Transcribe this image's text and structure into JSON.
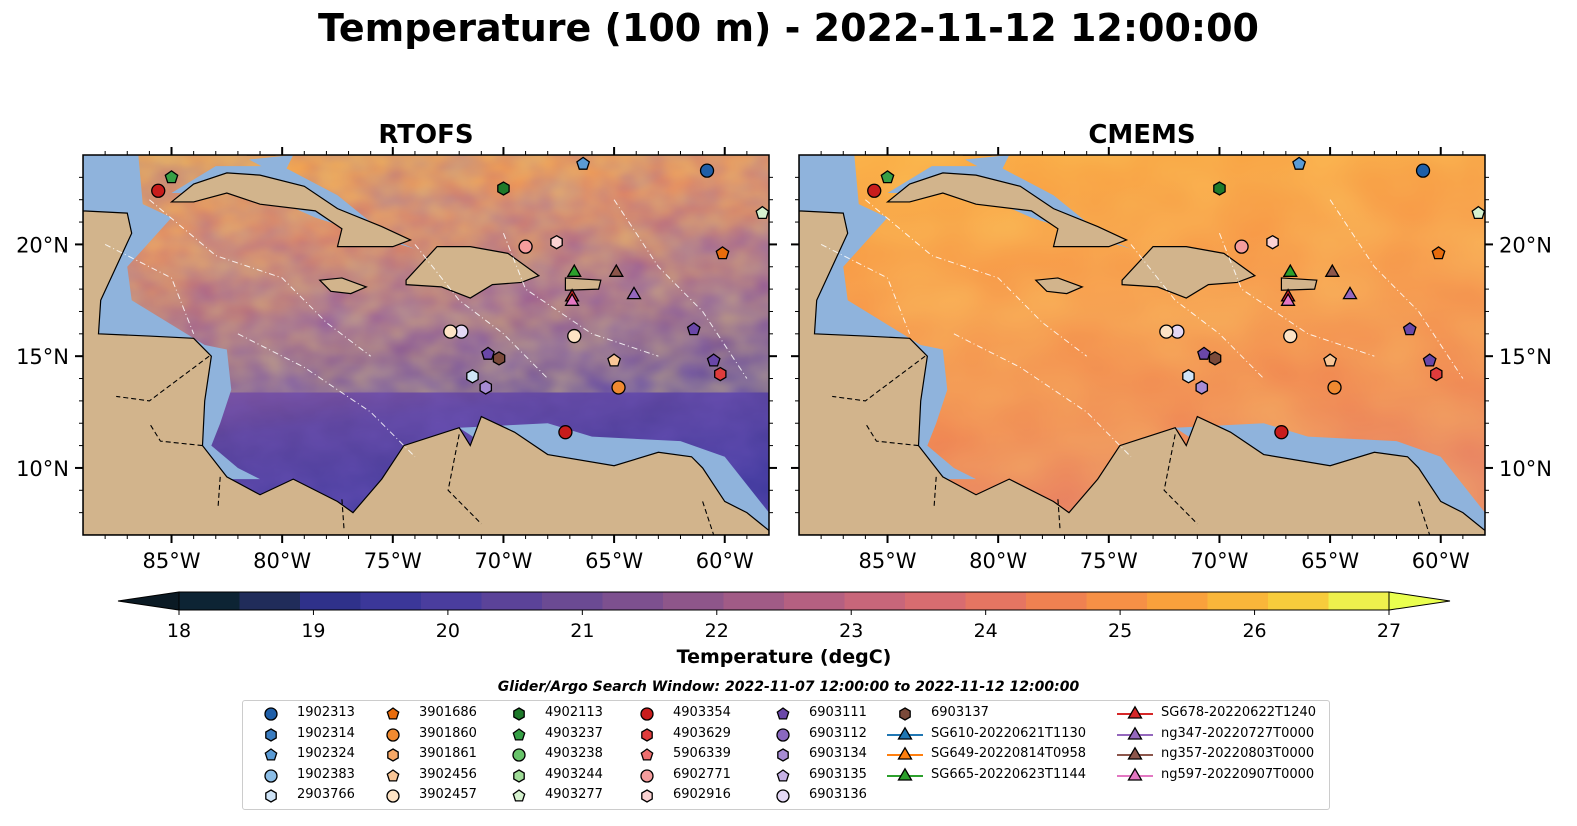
{
  "title": "Temperature (100 m) - 2022-11-12 12:00:00",
  "panels": [
    {
      "title": "RTOFS",
      "style": "rtofs"
    },
    {
      "title": "CMEMS",
      "style": "cmems"
    }
  ],
  "map_extent": {
    "lon": [
      -89,
      -58
    ],
    "lat": [
      7,
      24
    ]
  },
  "lon_ticks": [
    {
      "value": -85,
      "label": "85°W"
    },
    {
      "value": -80,
      "label": "80°W"
    },
    {
      "value": -75,
      "label": "75°W"
    },
    {
      "value": -70,
      "label": "70°W"
    },
    {
      "value": -65,
      "label": "65°W"
    },
    {
      "value": -60,
      "label": "60°W"
    }
  ],
  "lat_ticks": [
    {
      "value": 20,
      "label": "20°N"
    },
    {
      "value": 15,
      "label": "15°N"
    },
    {
      "value": 10,
      "label": "10°N"
    }
  ],
  "colorbar": {
    "label": "Temperature (degC)",
    "min": 18,
    "max": 27,
    "step": 0.5,
    "ticks": [
      18,
      19,
      20,
      21,
      22,
      23,
      24,
      25,
      26,
      27
    ],
    "colors": [
      "#0d2434",
      "#202c5a",
      "#2f318a",
      "#3b3799",
      "#4a3d9e",
      "#5b4399",
      "#6b4a93",
      "#7d508f",
      "#8e568a",
      "#a15b86",
      "#b56081",
      "#c8667a",
      "#d86c70",
      "#e57562",
      "#ef8151",
      "#f69046",
      "#f9a13c",
      "#f9b63a",
      "#f7cc3c",
      "#eef04d"
    ],
    "under_color": "#0b1a24",
    "over_color": "#eaff4f"
  },
  "colors": {
    "land": "#d2b48c",
    "shelf": "#8fb3dc",
    "deep_dark": "#0a2233"
  },
  "legend": {
    "title": "Glider/Argo Search Window: 2022-11-07 12:00:00 to 2022-11-12 12:00:00",
    "columns": [
      [
        {
          "label": "1902313",
          "marker": "circle",
          "color": "#1f5fa8"
        },
        {
          "label": "1902314",
          "marker": "hexagon",
          "color": "#3a7cc0"
        },
        {
          "label": "1902324",
          "marker": "pentagon",
          "color": "#5a9bd5"
        },
        {
          "label": "1902383",
          "marker": "circle",
          "color": "#8bbde6"
        },
        {
          "label": "2903766",
          "marker": "hexagon",
          "color": "#cfe4f7"
        }
      ],
      [
        {
          "label": "3901686",
          "marker": "pentagon",
          "color": "#e86c0c"
        },
        {
          "label": "3901860",
          "marker": "circle",
          "color": "#f08a30"
        },
        {
          "label": "3901861",
          "marker": "hexagon",
          "color": "#f7a866"
        },
        {
          "label": "3902456",
          "marker": "pentagon",
          "color": "#f9c697"
        },
        {
          "label": "3902457",
          "marker": "circle",
          "color": "#fde3c5"
        }
      ],
      [
        {
          "label": "4902113",
          "marker": "hexagon",
          "color": "#1e7a2a"
        },
        {
          "label": "4903237",
          "marker": "pentagon",
          "color": "#36a046"
        },
        {
          "label": "4903238",
          "marker": "circle",
          "color": "#68c46a"
        },
        {
          "label": "4903244",
          "marker": "hexagon",
          "color": "#a0dc98"
        },
        {
          "label": "4903277",
          "marker": "pentagon",
          "color": "#d6f2cf"
        }
      ],
      [
        {
          "label": "4903354",
          "marker": "circle",
          "color": "#c81c1c"
        },
        {
          "label": "4903629",
          "marker": "hexagon",
          "color": "#e03c3c"
        },
        {
          "label": "5906339",
          "marker": "pentagon",
          "color": "#ee6f6f"
        },
        {
          "label": "6902771",
          "marker": "circle",
          "color": "#f59d9d"
        },
        {
          "label": "6902916",
          "marker": "hexagon",
          "color": "#fbd2d2"
        }
      ],
      [
        {
          "label": "6903111",
          "marker": "pentagon",
          "color": "#6a47a8"
        },
        {
          "label": "6903112",
          "marker": "circle",
          "color": "#8a68c0"
        },
        {
          "label": "6903134",
          "marker": "hexagon",
          "color": "#a78cd4"
        },
        {
          "label": "6903135",
          "marker": "pentagon",
          "color": "#c7b2e6"
        },
        {
          "label": "6903136",
          "marker": "circle",
          "color": "#e4d8f5"
        }
      ],
      [
        {
          "label": "6903137",
          "marker": "hexagon",
          "color": "#7b4a3a"
        },
        {
          "label": "SG610-20220621T1130",
          "marker": "triangle-line",
          "color": "#1f77b4"
        },
        {
          "label": "SG649-20220814T0958",
          "marker": "triangle-line",
          "color": "#ff7f0e"
        },
        {
          "label": "SG665-20220623T1144",
          "marker": "triangle-line",
          "color": "#2ca02c"
        }
      ],
      [
        {
          "label": "SG678-20220622T1240",
          "marker": "triangle-line",
          "color": "#d62728"
        },
        {
          "label": "ng347-20220727T0000",
          "marker": "triangle-line",
          "color": "#9467bd"
        },
        {
          "label": "ng357-20220803T0000",
          "marker": "triangle-line",
          "color": "#8c564b"
        },
        {
          "label": "ng597-20220907T0000",
          "marker": "triangle-line",
          "color": "#e377c2"
        }
      ]
    ]
  },
  "stations": [
    {
      "label": "1902313",
      "lon": -60.8,
      "lat": 23.3
    },
    {
      "label": "1902324",
      "lon": -66.4,
      "lat": 23.6
    },
    {
      "label": "4903237",
      "lon": -85.0,
      "lat": 23.0
    },
    {
      "label": "4903354",
      "lon": -85.6,
      "lat": 22.4
    },
    {
      "label": "4902113",
      "lon": -70.0,
      "lat": 22.5
    },
    {
      "label": "4903277",
      "lon": -58.3,
      "lat": 21.4
    },
    {
      "label": "3901686",
      "lon": -60.1,
      "lat": 19.6
    },
    {
      "label": "6902771",
      "lon": -69.0,
      "lat": 19.9
    },
    {
      "label": "6902916",
      "lon": -67.6,
      "lat": 20.1
    },
    {
      "label": "SG665-20220623T1144",
      "lon": -66.8,
      "lat": 18.8
    },
    {
      "label": "ng357-20220803T0000",
      "lon": -64.9,
      "lat": 18.8
    },
    {
      "label": "SG678-20220622T1240",
      "lon": -66.9,
      "lat": 17.7
    },
    {
      "label": "ng597-20220907T0000",
      "lon": -66.9,
      "lat": 17.5
    },
    {
      "label": "ng347-20220727T0000",
      "lon": -64.1,
      "lat": 17.8
    },
    {
      "label": "6903136",
      "lon": -71.9,
      "lat": 16.1
    },
    {
      "label": "3902457",
      "lon": -72.4,
      "lat": 16.1
    },
    {
      "label": "3902457",
      "lon": -66.8,
      "lat": 15.9
    },
    {
      "label": "6903111",
      "lon": -70.7,
      "lat": 15.1
    },
    {
      "label": "6903137",
      "lon": -70.2,
      "lat": 14.9
    },
    {
      "label": "2903766",
      "lon": -71.4,
      "lat": 14.1
    },
    {
      "label": "6903134",
      "lon": -70.8,
      "lat": 13.6
    },
    {
      "label": "3902456",
      "lon": -65.0,
      "lat": 14.8
    },
    {
      "label": "3901860",
      "lon": -64.8,
      "lat": 13.6
    },
    {
      "label": "6903111",
      "lon": -60.5,
      "lat": 14.8
    },
    {
      "label": "4903629",
      "lon": -60.2,
      "lat": 14.2
    },
    {
      "label": "4903354",
      "lon": -67.2,
      "lat": 11.6
    },
    {
      "label": "6903111",
      "lon": -61.4,
      "lat": 16.2
    }
  ]
}
